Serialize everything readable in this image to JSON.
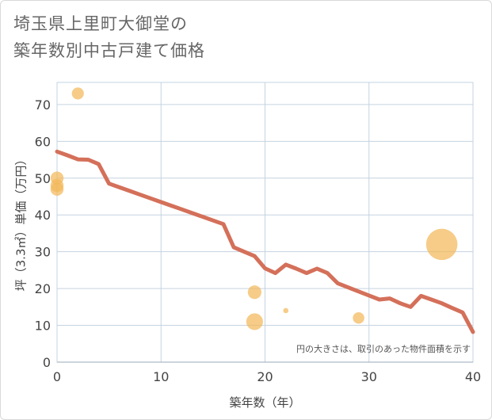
{
  "title": {
    "line1": "埼玉県上里町大御堂の",
    "line2": "築年数別中古戸建て価格"
  },
  "colors": {
    "line": "#d4705a",
    "bubble": "#f2b95a",
    "grid": "#c5d3e0",
    "plot_bg": "#ffffff"
  },
  "chart_data": {
    "type": "scatter",
    "title": "埼玉県上里町大御堂の築年数別中古戸建て価格",
    "xlabel": "築年数（年）",
    "ylabel": "坪（3.3㎡）単価（万円）",
    "xlim": [
      0,
      40
    ],
    "ylim": [
      0,
      76
    ],
    "xticks": [
      0,
      10,
      20,
      30,
      40
    ],
    "yticks": [
      0,
      10,
      20,
      30,
      40,
      50,
      60,
      70
    ],
    "grid": true,
    "note": "円の大きさは、取引のあった物件面積を示す",
    "trend_line": {
      "x": [
        0,
        1,
        2,
        3,
        4,
        5,
        6,
        7,
        8,
        9,
        10,
        11,
        12,
        13,
        14,
        15,
        16,
        17,
        18,
        19,
        20,
        21,
        22,
        23,
        24,
        25,
        26,
        27,
        28,
        29,
        30,
        31,
        32,
        33,
        34,
        35,
        36,
        37,
        38,
        39,
        40
      ],
      "y": [
        57.2,
        56.2,
        55.1,
        55.0,
        53.8,
        48.5,
        47.5,
        46.5,
        45.5,
        44.5,
        43.5,
        42.5,
        41.5,
        40.5,
        39.5,
        38.5,
        37.5,
        31.2,
        30.0,
        28.8,
        25.5,
        24.2,
        26.5,
        25.4,
        24.2,
        25.4,
        24.2,
        21.4,
        20.3,
        19.2,
        18.1,
        17.0,
        17.3,
        16.0,
        15.0,
        18.0,
        17.0,
        16.0,
        14.7,
        13.5,
        8.2
      ]
    },
    "points": [
      {
        "x": 0,
        "y": 50.0,
        "size": 2.5
      },
      {
        "x": 0,
        "y": 48.0,
        "size": 2.5
      },
      {
        "x": 0,
        "y": 47.0,
        "size": 2.5
      },
      {
        "x": 2,
        "y": 73.0,
        "size": 2.3
      },
      {
        "x": 19,
        "y": 19.0,
        "size": 2.6
      },
      {
        "x": 19,
        "y": 11.0,
        "size": 3.2
      },
      {
        "x": 22,
        "y": 14.0,
        "size": 1.0
      },
      {
        "x": 29,
        "y": 12.0,
        "size": 2.2
      },
      {
        "x": 37,
        "y": 32.0,
        "size": 6.0
      }
    ]
  }
}
